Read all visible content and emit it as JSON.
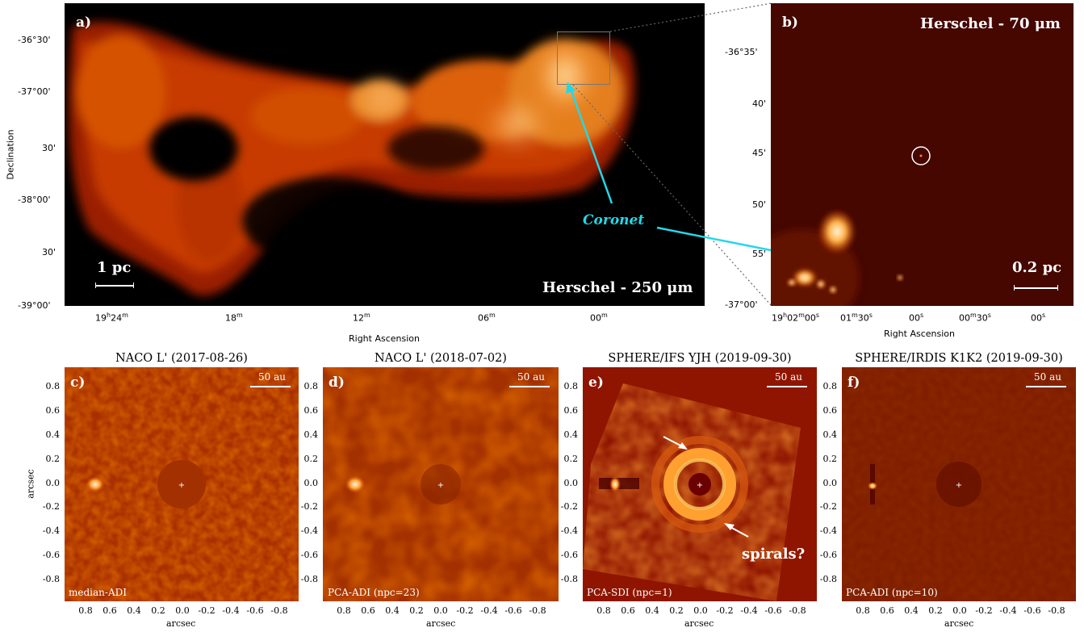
{
  "panel_a": {
    "label": "a)",
    "caption": "Herschel - 250 μm",
    "scale": "1 pc",
    "ylabel": "Declination",
    "xlabel": "Right Ascension",
    "yticks": [
      "-36°30'",
      "-37°00'",
      "30'",
      "-38°00'",
      "30'",
      "-39°00'"
    ],
    "xticks_h": [
      "19",
      "18",
      "12",
      "06",
      "00"
    ],
    "xticks_first": "19h24m",
    "coronet": "Coronet"
  },
  "panel_b": {
    "label": "b)",
    "caption": "Herschel - 70 μm",
    "scale": "0.2 pc",
    "xlabel": "Right Ascension",
    "yticks": [
      "-36°35'",
      "40'",
      "45'",
      "50'",
      "55'",
      "-37°00'"
    ],
    "xticks": [
      "19h02m00s",
      "01m30s",
      "00s",
      "00m30s",
      "00s"
    ]
  },
  "panels_bottom": [
    {
      "label": "c)",
      "title": "NACO L' (2017-08-26)",
      "method": "median-ADI",
      "au": "50 au"
    },
    {
      "label": "d)",
      "title": "NACO L' (2018-07-02)",
      "method": "PCA-ADI (npc=23)",
      "au": "50 au"
    },
    {
      "label": "e)",
      "title": "SPHERE/IFS YJH (2019-09-30)",
      "method": "PCA-SDI (npc=1)",
      "au": "50 au",
      "note": "spirals?"
    },
    {
      "label": "f)",
      "title": "SPHERE/IRDIS K1K2 (2019-09-30)",
      "method": "PCA-ADI (npc=10)",
      "au": "50 au"
    }
  ],
  "bottom_axes": {
    "xlabel": "arcsec",
    "ylabel": "arcsec",
    "ticks": [
      "0.8",
      "0.6",
      "0.4",
      "0.2",
      "0.0",
      "-0.2",
      "-0.4",
      "-0.6",
      "-0.8"
    ],
    "xticks": [
      "0.8",
      "0.6",
      "0.4",
      "0.2",
      "0.0",
      "-0.2",
      "-0.4",
      "-0.6",
      "-0.8"
    ]
  }
}
